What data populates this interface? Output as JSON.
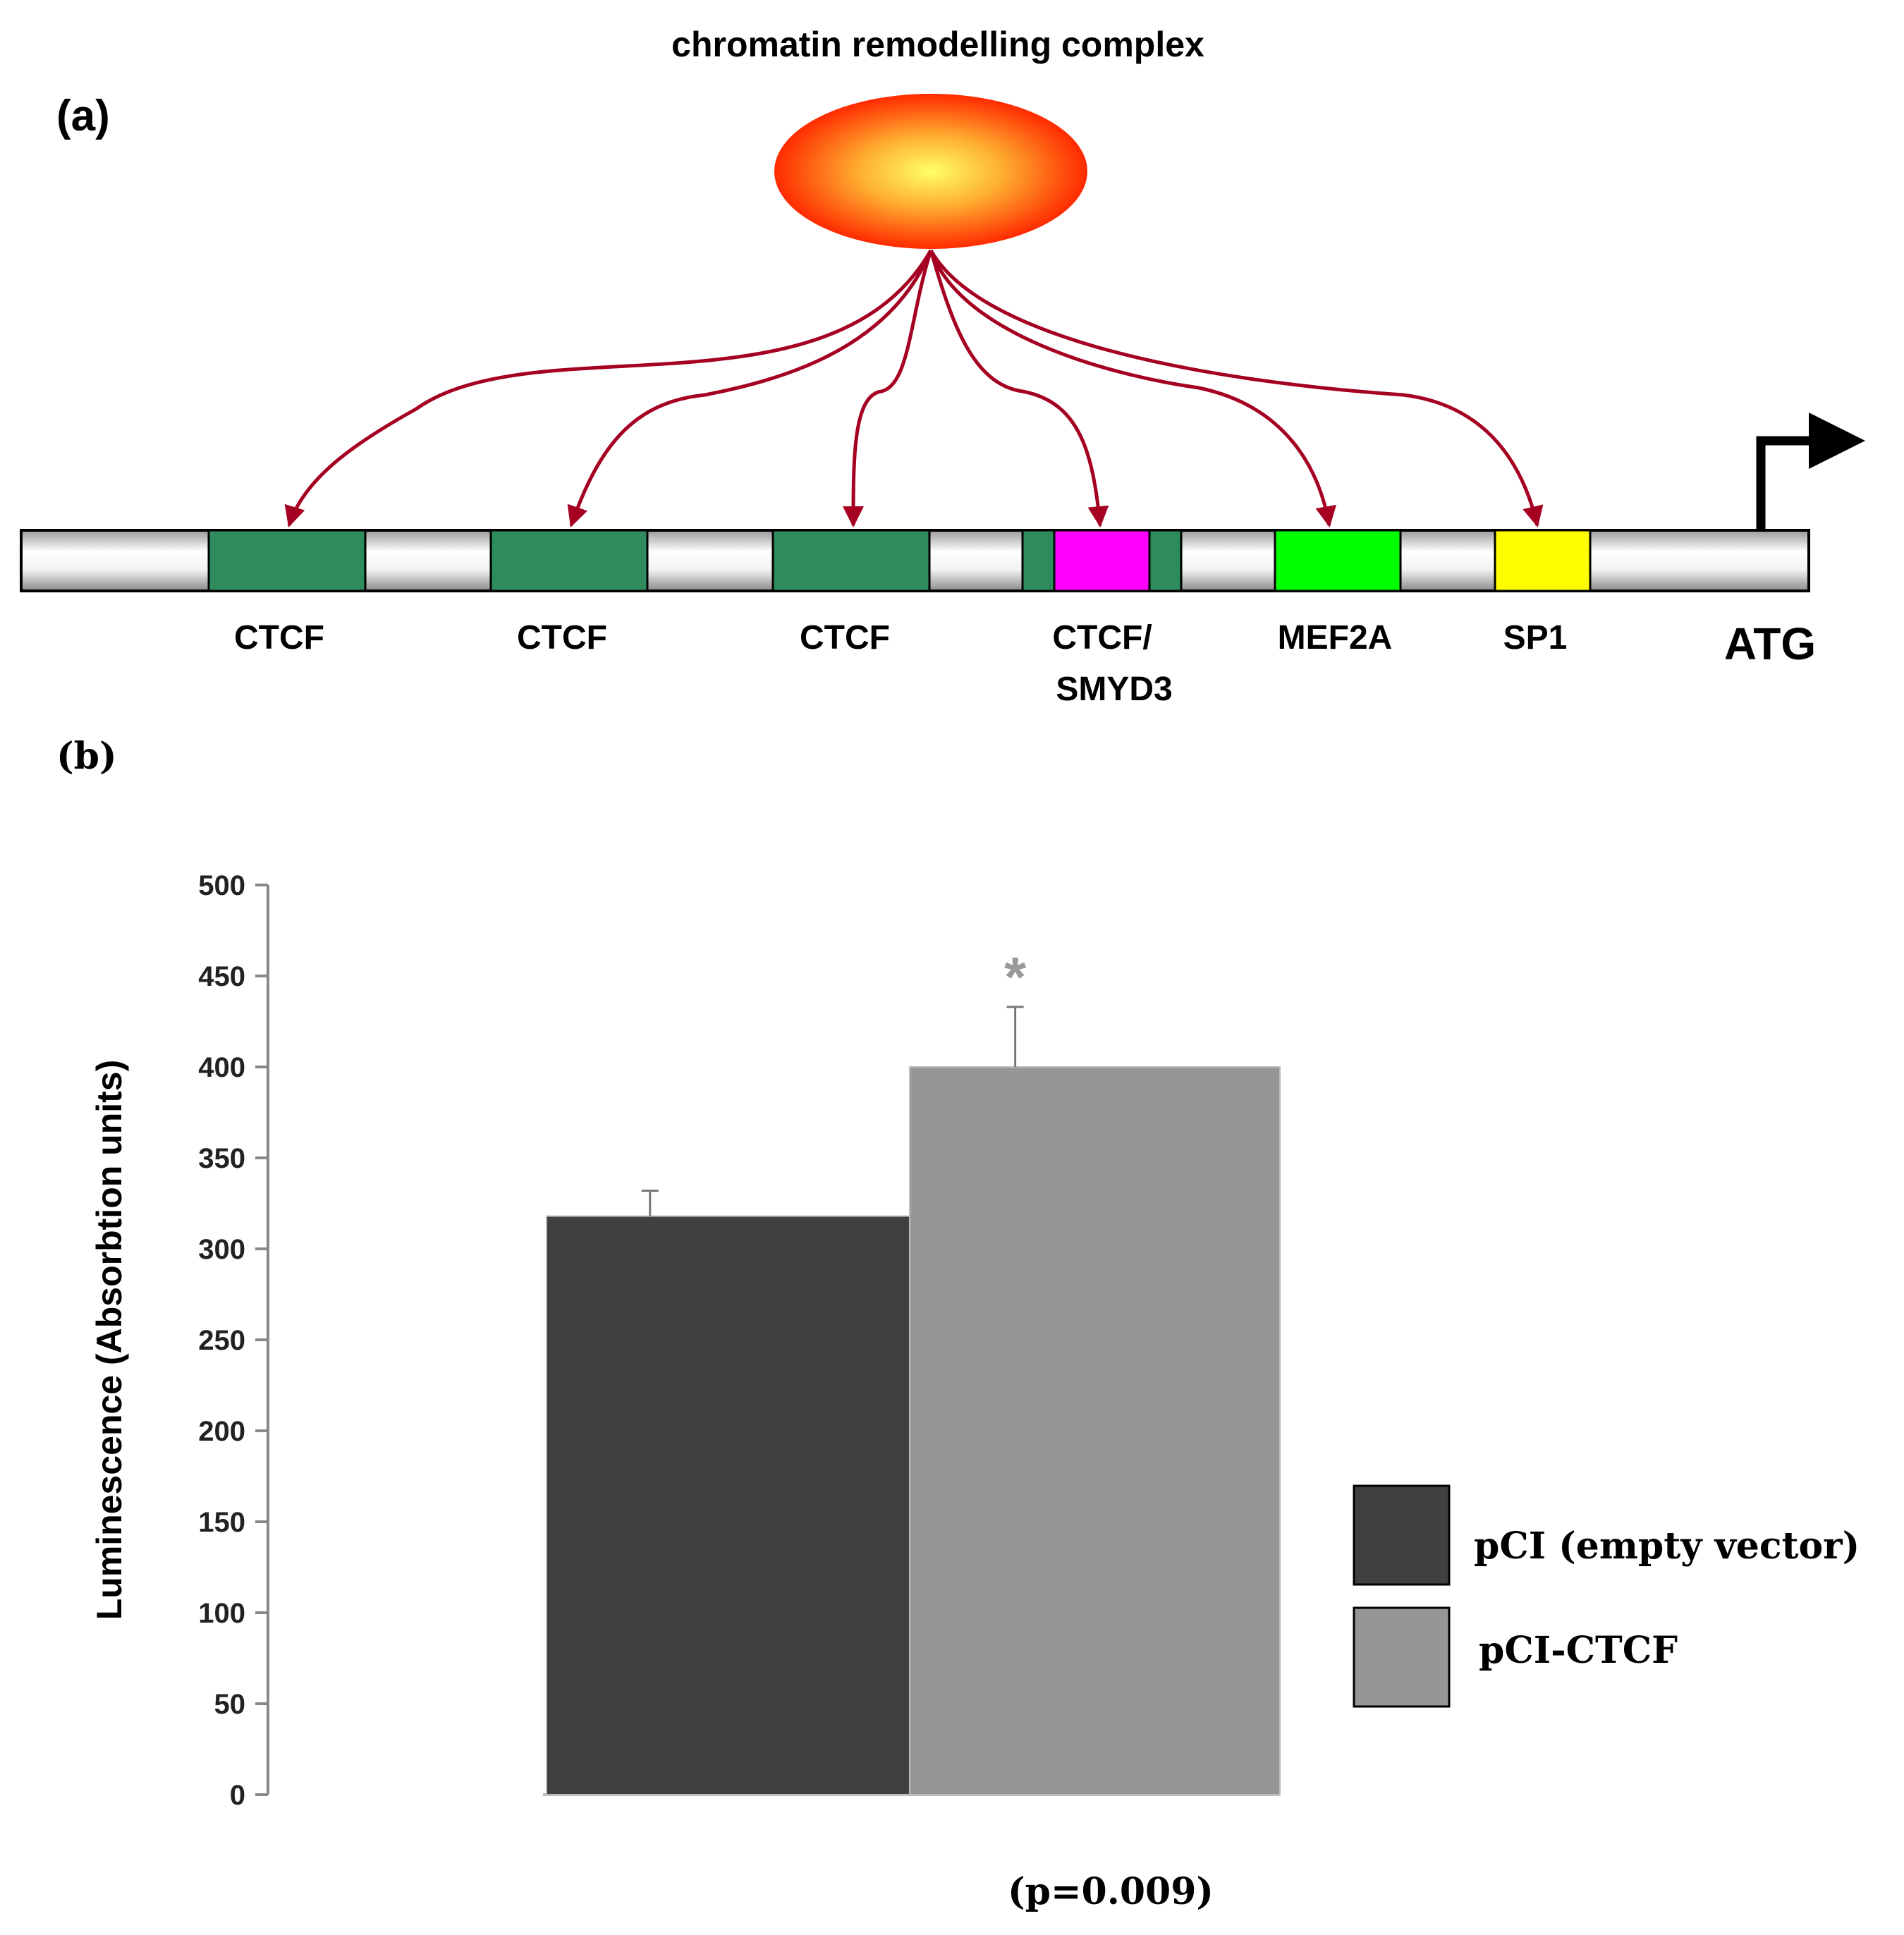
{
  "panel_a": {
    "label": "(a)",
    "complex_title": "chromatin remodelling complex",
    "start_label": "ATG",
    "sites": [
      {
        "label": "CTCF",
        "color": "#2E8B5C"
      },
      {
        "label": "CTCF",
        "color": "#2E8B5C"
      },
      {
        "label": "CTCF",
        "color": "#2E8B5C"
      },
      {
        "label": "CTCF/",
        "label2": "SMYD3",
        "color": "#FF00FF"
      },
      {
        "label": "MEF2A",
        "color": "#00FF00"
      },
      {
        "label": "SP1",
        "color": "#FFFF00"
      }
    ],
    "colors": {
      "arrow": "#A50021",
      "ctcf": "#2E8B5C",
      "oval_outer": "#FF2A00",
      "oval_inner": "#FFFF66"
    }
  },
  "panel_b": {
    "label": "(b)",
    "p_value": "(p=0.009)",
    "significance": "*"
  },
  "chart_data": {
    "type": "bar",
    "ylabel": "Luminescence (Absorbtion units)",
    "xlabel": "",
    "ylim": [
      0,
      500
    ],
    "yticks": [
      0,
      50,
      100,
      150,
      200,
      250,
      300,
      350,
      400,
      450,
      500
    ],
    "series": [
      {
        "name": "pCI (empty vector)",
        "value": 318,
        "error": 14,
        "color": "#404040"
      },
      {
        "name": "pCI-CTCF",
        "value": 400,
        "error": 33,
        "color": "#969696"
      }
    ],
    "annotations": [
      "*",
      "(p=0.009)"
    ],
    "legend": "right"
  }
}
